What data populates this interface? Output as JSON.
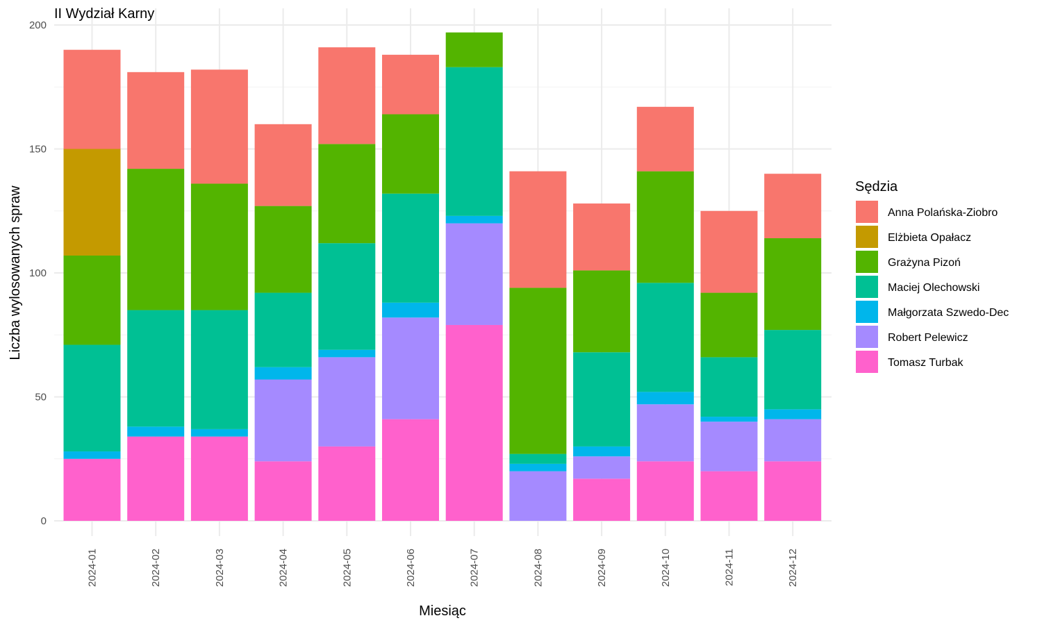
{
  "chart_data": {
    "type": "bar",
    "stacked": true,
    "title": "II Wydział Karny",
    "xlabel": "Miesiąc",
    "ylabel": "Liczba wylosowanych spraw",
    "ylim": [
      0,
      200
    ],
    "yticks": [
      0,
      50,
      100,
      150,
      200
    ],
    "grid": true,
    "legend_title": "Sędzia",
    "legend_position": "right",
    "categories": [
      "2024-01",
      "2024-02",
      "2024-03",
      "2024-04",
      "2024-05",
      "2024-06",
      "2024-07",
      "2024-08",
      "2024-09",
      "2024-10",
      "2024-11",
      "2024-12"
    ],
    "series": [
      {
        "name": "Tomasz Turbak",
        "color": "#FF61CC",
        "values": [
          25,
          34,
          34,
          24,
          30,
          41,
          79,
          0,
          17,
          24,
          20,
          24
        ]
      },
      {
        "name": "Robert Pelewicz",
        "color": "#A58AFF",
        "values": [
          0,
          0,
          0,
          33,
          36,
          41,
          41,
          20,
          9,
          23,
          20,
          17
        ]
      },
      {
        "name": "Małgorzata Szwedo-Dec",
        "color": "#00B6EB",
        "values": [
          3,
          4,
          3,
          5,
          3,
          6,
          3,
          3,
          4,
          5,
          2,
          4
        ]
      },
      {
        "name": "Maciej Olechowski",
        "color": "#00C094",
        "values": [
          43,
          47,
          48,
          30,
          43,
          44,
          60,
          4,
          38,
          44,
          24,
          32
        ]
      },
      {
        "name": "Grażyna Pizoń",
        "color": "#53B400",
        "values": [
          36,
          57,
          51,
          35,
          40,
          32,
          14,
          67,
          33,
          45,
          26,
          37
        ]
      },
      {
        "name": "Elżbieta Opałacz",
        "color": "#C49A00",
        "values": [
          43,
          0,
          0,
          0,
          0,
          0,
          0,
          0,
          0,
          0,
          0,
          0
        ]
      },
      {
        "name": "Anna Polańska-Ziobro",
        "color": "#F8766D",
        "values": [
          40,
          39,
          46,
          33,
          39,
          24,
          0,
          47,
          27,
          26,
          33,
          26
        ]
      }
    ],
    "legend_order": [
      "Anna Polańska-Ziobro",
      "Elżbieta Opałacz",
      "Grażyna Pizoń",
      "Maciej Olechowski",
      "Małgorzata Szwedo-Dec",
      "Robert Pelewicz",
      "Tomasz Turbak"
    ]
  }
}
